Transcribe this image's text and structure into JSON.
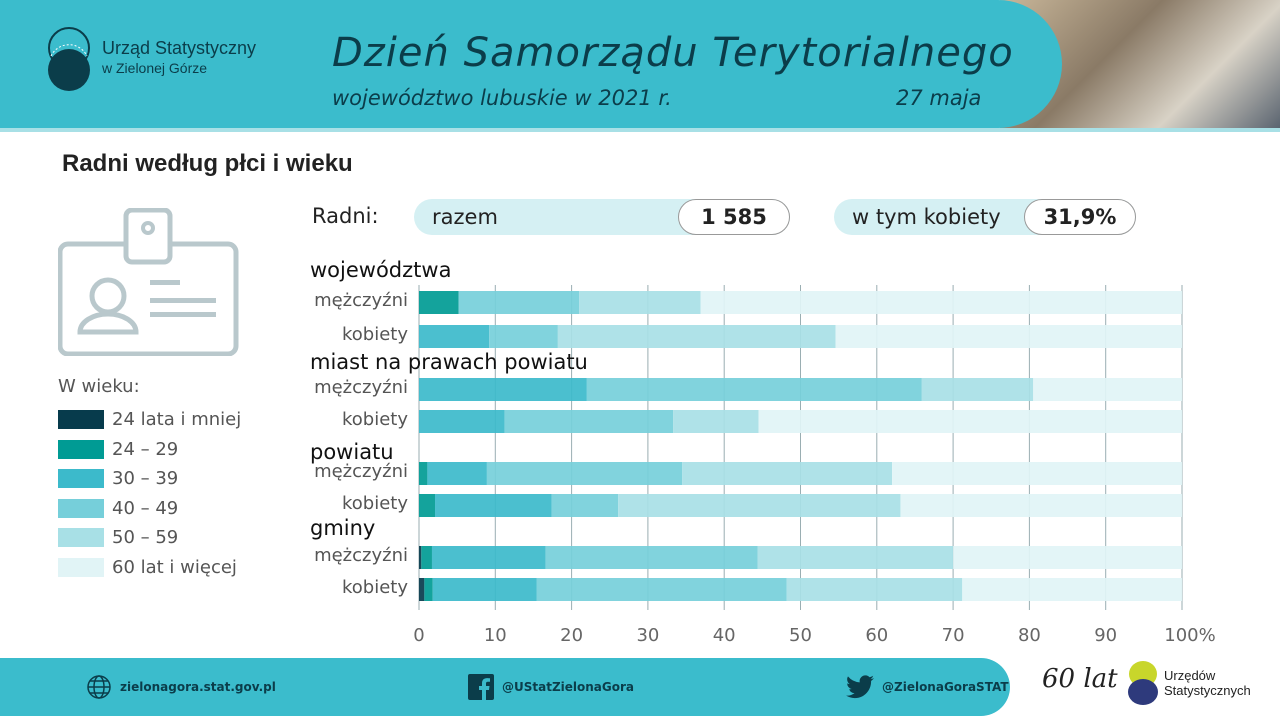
{
  "header": {
    "org_line1": "Urząd Statystyczny",
    "org_line2": "w Zielonej Górze",
    "title": "Dzień Samorządu Terytorialnego",
    "subtitle": "województwo lubuskie w 2021 r.",
    "date": "27 maja"
  },
  "section_title": "Radni według płci i wieku",
  "summary": {
    "label": "Radni:",
    "total_label": "razem",
    "total_value": "1 585",
    "women_label": "w tym kobiety",
    "women_value": "31,9%"
  },
  "legend": {
    "title": "W wieku:"
  },
  "colors": {
    "brand": "#3bbccc",
    "dark": "#0b3d4a"
  },
  "chart_data": {
    "type": "bar",
    "orientation": "horizontal",
    "stacked": true,
    "xlim": [
      0,
      100
    ],
    "xticks": [
      "0",
      "10",
      "20",
      "30",
      "40",
      "50",
      "60",
      "70",
      "80",
      "90",
      "100%"
    ],
    "grid": true,
    "series": [
      {
        "name": "24 lata i mniej",
        "color": "#073b4c"
      },
      {
        "name": "24 – 29",
        "color": "#009b94"
      },
      {
        "name": "30 – 39",
        "color": "#3cbacb"
      },
      {
        "name": "40 – 49",
        "color": "#76cfda"
      },
      {
        "name": "50 – 59",
        "color": "#a8e0e6"
      },
      {
        "name": "60 lat i więcej",
        "color": "#e1f4f6"
      }
    ],
    "groups": [
      {
        "name": "województwa",
        "rows": [
          {
            "label": "mężczyźni",
            "values": [
              0,
              5.2,
              0,
              15.8,
              15.9,
              63.1
            ]
          },
          {
            "label": "kobiety",
            "values": [
              0,
              0,
              9.2,
              9.0,
              36.4,
              45.4
            ]
          }
        ]
      },
      {
        "name": "miast na prawach powiatu",
        "rows": [
          {
            "label": "mężczyźni",
            "values": [
              0,
              0,
              22.0,
              43.9,
              14.6,
              19.5
            ]
          },
          {
            "label": "kobiety",
            "values": [
              0,
              0,
              11.2,
              22.1,
              11.2,
              55.5
            ]
          }
        ]
      },
      {
        "name": "powiatu",
        "rows": [
          {
            "label": "mężczyźni",
            "values": [
              0,
              1.1,
              7.8,
              25.6,
              27.5,
              38.0
            ]
          },
          {
            "label": "kobiety",
            "values": [
              0,
              2.1,
              15.3,
              8.7,
              37.0,
              36.9
            ]
          }
        ]
      },
      {
        "name": "gminy",
        "rows": [
          {
            "label": "mężczyźni",
            "values": [
              0.3,
              1.4,
              14.9,
              27.8,
              25.6,
              30.0
            ]
          },
          {
            "label": "kobiety",
            "values": [
              0.7,
              1.1,
              13.6,
              32.8,
              23.0,
              28.8
            ]
          }
        ]
      }
    ]
  },
  "footer": {
    "website": "zielonagora.stat.gov.pl",
    "facebook": "@UStatZielonaGora",
    "twitter": "@ZielonaGoraSTAT",
    "anniversary": "60 lat",
    "partner_line1": "Urzędów",
    "partner_line2": "Statystycznych"
  }
}
